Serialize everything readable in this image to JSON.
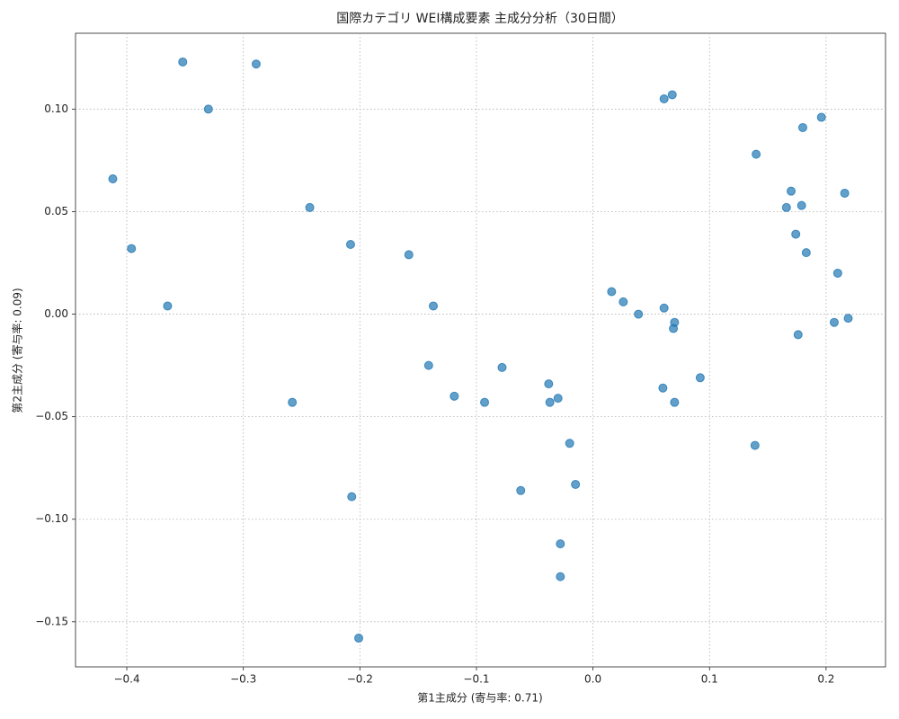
{
  "chart_data": {
    "type": "scatter",
    "title": "国際カテゴリ WEI構成要素 主成分分析（30日間）",
    "x_label": "第1主成分 (寄与率: 0.71)",
    "y_label": "第2主成分 (寄与率: 0.09)",
    "color": "#1f77b4",
    "grid": true,
    "xlim": [
      -0.444,
      0.251
    ],
    "ylim": [
      -0.172,
      0.137
    ],
    "xticks": [
      {
        "value": -0.4,
        "label": "−0.4"
      },
      {
        "value": -0.3,
        "label": "−0.3"
      },
      {
        "value": -0.2,
        "label": "−0.2"
      },
      {
        "value": -0.1,
        "label": "−0.1"
      },
      {
        "value": 0,
        "label": "0.0"
      },
      {
        "value": 0.1,
        "label": "0.1"
      },
      {
        "value": 0.2,
        "label": "0.2"
      }
    ],
    "yticks": [
      {
        "value": -0.15,
        "label": "−0.15"
      },
      {
        "value": -0.1,
        "label": "−0.10"
      },
      {
        "value": -0.05,
        "label": "−0.05"
      },
      {
        "value": 0,
        "label": "0.00"
      },
      {
        "value": 0.05,
        "label": "0.05"
      },
      {
        "value": 0.1,
        "label": "0.10"
      }
    ],
    "x": [
      -0.352,
      -0.289,
      -0.33,
      -0.412,
      -0.396,
      -0.365,
      -0.243,
      -0.208,
      -0.258,
      -0.207,
      -0.201,
      -0.158,
      -0.137,
      -0.141,
      -0.119,
      -0.093,
      -0.078,
      -0.038,
      -0.037,
      -0.03,
      -0.02,
      -0.015,
      -0.062,
      -0.028,
      -0.028,
      0.016,
      0.026,
      0.039,
      0.061,
      0.07,
      0.069,
      0.06,
      0.07,
      0.092,
      0.061,
      0.068,
      0.14,
      0.139,
      0.18,
      0.196,
      0.17,
      0.166,
      0.179,
      0.174,
      0.183,
      0.216,
      0.21,
      0.207,
      0.219,
      0.176
    ],
    "values": [
      0.123,
      0.122,
      0.1,
      0.066,
      0.032,
      0.004,
      0.052,
      0.034,
      -0.043,
      -0.089,
      -0.158,
      0.029,
      0.004,
      -0.025,
      -0.04,
      -0.043,
      -0.026,
      -0.034,
      -0.043,
      -0.041,
      -0.063,
      -0.083,
      -0.086,
      -0.112,
      -0.128,
      0.011,
      0.006,
      0.0,
      0.003,
      -0.004,
      -0.007,
      -0.036,
      -0.043,
      -0.031,
      0.105,
      0.107,
      0.078,
      -0.064,
      0.091,
      0.096,
      0.06,
      0.052,
      0.053,
      0.039,
      0.03,
      0.059,
      0.02,
      -0.004,
      -0.002,
      -0.01
    ]
  }
}
